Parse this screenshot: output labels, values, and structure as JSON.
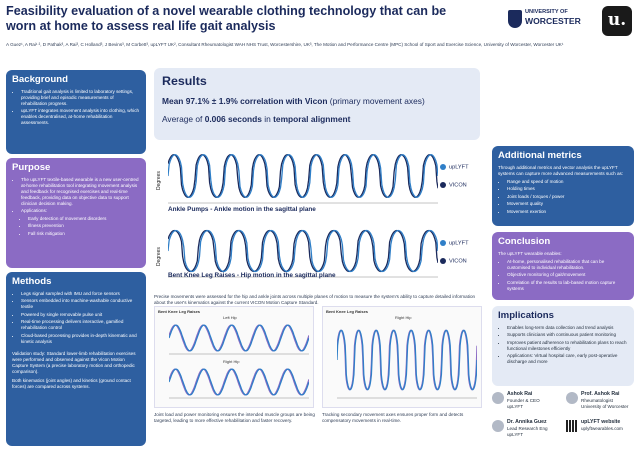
{
  "header": {
    "title": "Feasibility evaluation of a novel wearable clothing technology that can be worn at home to assess real life gait analysis",
    "authors": "A Guez¹, A Rai¹ ², D Pathak³, A Rai³, C Holland³, J Bevins³, M Corbett³, upLYFT UK², Consultant Rheumatologist WAH NHS Trust, Worcestershire, UK³, The Motion and Performance Centre (MPC) School of Sport and Exercise Science, University of Worcester, Worcester UK¹",
    "university_logo": [
      "UNIVERSITY OF",
      "WORCESTER"
    ],
    "brand_logo": "u."
  },
  "background": {
    "heading": "Background",
    "items": [
      "Traditional gait analysis is limited to laboratory settings, providing brief and episodic measurements of rehabilitation progress.",
      "upLYFT integrates movement analysis into clothing, which enables decentralised, at-home rehabilitation assessments."
    ]
  },
  "purpose": {
    "heading": "Purpose",
    "items": [
      "The upLYFT textile-based wearable is a new user-centred at-home rehabilitation tool integrating movement analysis and feedback for recognised exercises and real-time feedback, providing data on objective data to support clinician decision making.",
      "Applications:"
    ],
    "applications": [
      "Early detection of movement disorders",
      "Illness prevention",
      "Fall risk mitigation"
    ]
  },
  "methods": {
    "heading": "Methods",
    "items": [
      "Legs signal sampled with IMU and force sensors",
      "Sensors embedded into machine-washable conductive textile",
      "Powered by single removable pulse unit",
      "Real-time processing delivers interactive, gamified rehabilitation control",
      "Cloud-based processing provides in-depth kinematic and kinetic analysis"
    ],
    "validation": "Validation study: Standard lower-limb rehabilitation exercises were performed and observed against the Vicon Motion Capture System (a precise laboratory motion and orthopedic comparison).",
    "kinematics": "Both kinematics (joint angles) and kinetics (ground contact forces) are compared across systems."
  },
  "results": {
    "heading": "Results",
    "line1_bold": "Mean 97.1% ± 1.9% correlation with Vicon",
    "line1_rest": " (primary movement axes)",
    "line2_pre": "Average of ",
    "line2_bold": "0.006 seconds",
    "line2_mid": " in ",
    "line2_bold2": "temporal alignment"
  },
  "plot1": {
    "ylabel": "Degrees",
    "caption": "Ankle Pumps - Ankle motion in the sagittal plane",
    "legend": [
      "upLYFT",
      "VICON"
    ]
  },
  "plot2": {
    "ylabel": "Degrees",
    "caption": "Bent Knee Leg Raises - Hip motion in the sagittal plane",
    "legend": [
      "upLYFT",
      "VICON"
    ]
  },
  "note": "Precise movements were assessed for the hip and ankle joints across multiple planes of motion to measure the system's ability to capture detailed information about the user's kinematics against the current VICON Motion Capture Standard.",
  "mini_left": {
    "title": "Bent Knee Leg Raises",
    "sub1": "Left Hip",
    "sub2": "Right Hip",
    "caption": "Joint load and power monitoring ensures the intended muscle groups are being targeted, leading to more effective rehabilitation and faster recovery."
  },
  "mini_right": {
    "title": "Bent Knee Leg Raises",
    "sub": "Right Hip",
    "caption": "Tracking secondary movement axes ensures proper form and detects compensatory movements in real-time."
  },
  "additional": {
    "heading": "Additional metrics",
    "intro": "Through additional metrics and vector analysis the upLYFT systems can capture more advanced measurements such as:",
    "items": [
      "Range and speed of motion",
      "Holding times",
      "Joint loads / torques / power",
      "Movement quality",
      "Movement exertion"
    ]
  },
  "conclusion": {
    "heading": "Conclusion",
    "intro": "The upLYFT wearable enables:",
    "items": [
      "At-home, personalised rehabilitation that can be customised to individual rehabilitation.",
      "Objective monitoring of gait/movement",
      "Correlation of the results to lab-based motion capture systems"
    ]
  },
  "implications": {
    "heading": "Implications",
    "items": [
      "Enables long-term data collection and trend analysis",
      "Supports clinicians with continuous patient monitoring",
      "Improves patient adherence to rehabilitation plans to reach functional milestones efficiently",
      "Applications: Virtual hospital care, early post-operative discharge and more"
    ]
  },
  "contacts": [
    {
      "name": "Ashok Rai",
      "role": "Founder & CEO",
      "org": "upLYFT"
    },
    {
      "name": "Prof. Ashok Rai",
      "role": "Rheumatologist",
      "org": "University of Worcester"
    },
    {
      "name": "Dr. Annika Guez",
      "role": "Lead Research Eng",
      "org": "upLYFT"
    },
    {
      "name": "upLYFT website",
      "role": "uplyftwearables.com",
      "org": ""
    }
  ],
  "colors": {
    "navy": "#1b2a5c",
    "card_blue": "#2e5fa0",
    "card_purple": "#8b6bc4",
    "series_uplyft": "#2f7fc8",
    "series_vicon": "#1b2a5c"
  }
}
